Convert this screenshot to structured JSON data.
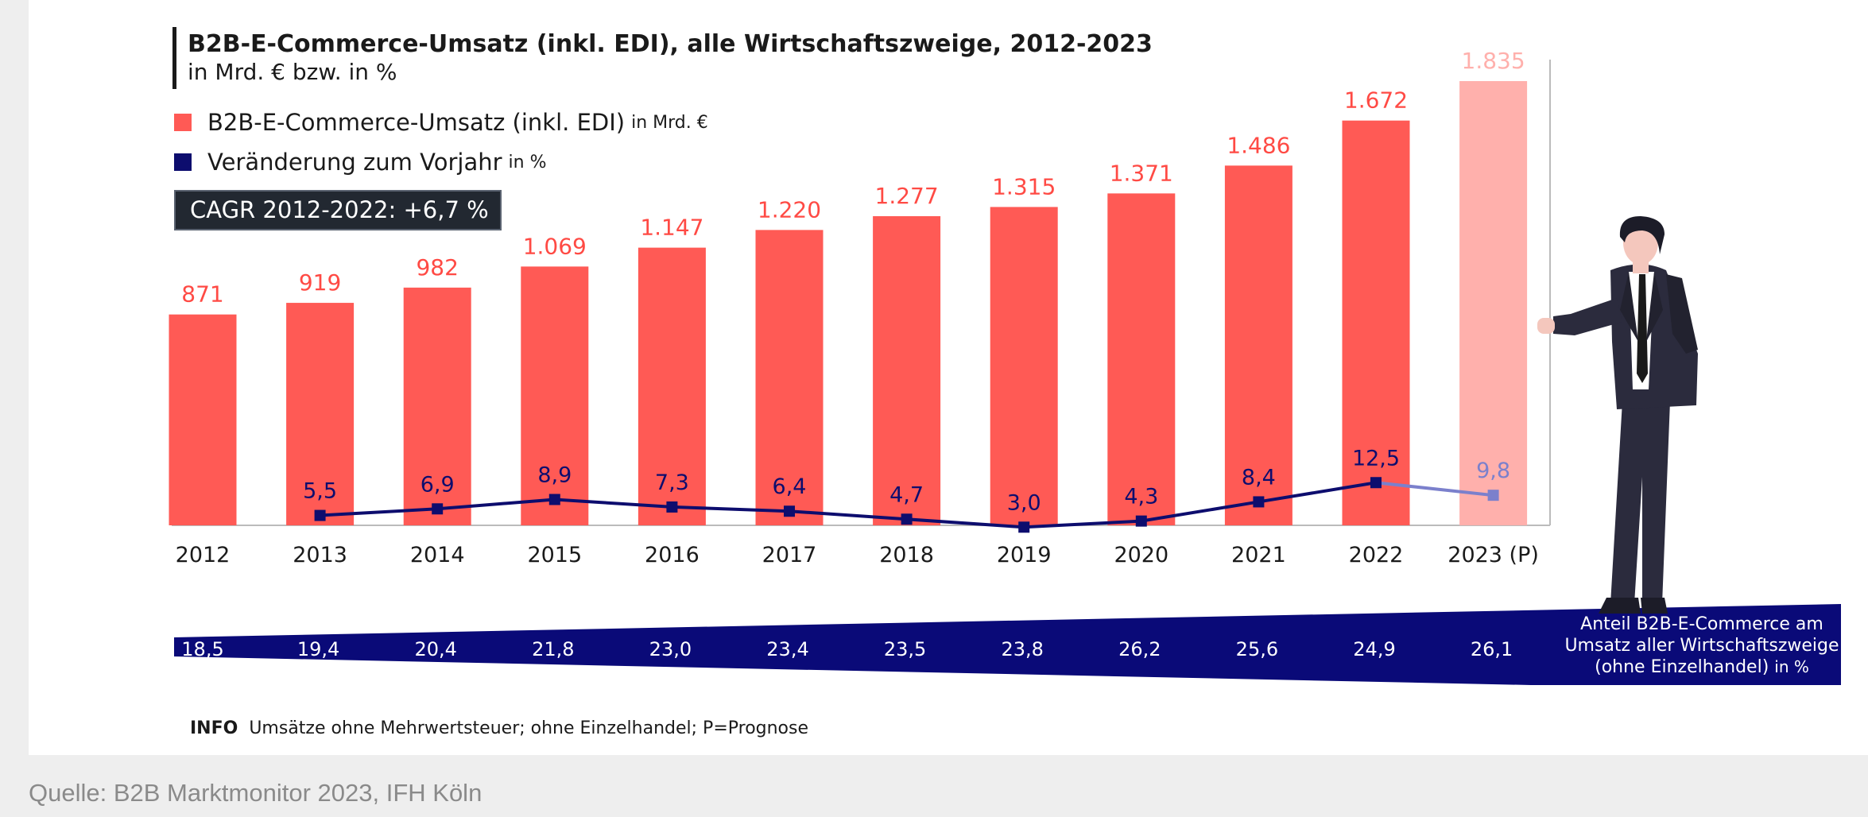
{
  "chart_data": {
    "type": "bar",
    "title": "B2B-E-Commerce-Umsatz (inkl. EDI), alle Wirtschaftszweige, 2012-2023",
    "subtitle": "in Mrd. € bzw. in %",
    "categories": [
      "2012",
      "2013",
      "2014",
      "2015",
      "2016",
      "2017",
      "2018",
      "2019",
      "2020",
      "2021",
      "2022",
      "2023 (P)"
    ],
    "series": [
      {
        "name": "B2B-E-Commerce-Umsatz (inkl. EDI)",
        "unit": "in Mrd. €",
        "type": "bar",
        "values": [
          871,
          919,
          982,
          1069,
          1147,
          1220,
          1277,
          1315,
          1371,
          1486,
          1672,
          1835
        ],
        "labels": [
          "871",
          "919",
          "982",
          "1.069",
          "1.147",
          "1.220",
          "1.277",
          "1.315",
          "1.371",
          "1.486",
          "1.672",
          "1.835"
        ],
        "color": "#ff5a55",
        "forecast_color": "#ffb0ac"
      },
      {
        "name": "Veränderung zum Vorjahr",
        "unit": "in %",
        "type": "line",
        "values": [
          null,
          5.5,
          6.9,
          8.9,
          7.3,
          6.4,
          4.7,
          3.0,
          4.3,
          8.4,
          12.5,
          9.8
        ],
        "labels": [
          "",
          "5,5",
          "6,9",
          "8,9",
          "7,3",
          "6,4",
          "4,7",
          "3,0",
          "4,3",
          "8,4",
          "12,5",
          "9,8"
        ],
        "color": "#0d0d6e",
        "forecast_color": "#7b80cc"
      },
      {
        "name": "Anteil B2B-E-Commerce am Umsatz aller Wirtschaftszweige (ohne Einzelhandel)",
        "unit": "in %",
        "type": "band",
        "values": [
          18.5,
          19.4,
          20.4,
          21.8,
          23.0,
          23.4,
          23.5,
          23.8,
          26.2,
          25.6,
          24.9,
          26.1
        ],
        "labels": [
          "18,5",
          "19,4",
          "20,4",
          "21,8",
          "23,0",
          "23,4",
          "23,5",
          "23,8",
          "26,2",
          "25,6",
          "24,9",
          "26,1"
        ],
        "color": "#0a0a78"
      }
    ],
    "forecast_category": "2023 (P)",
    "grid": false,
    "legend_position": "top-left"
  },
  "legend": {
    "revenue_label": "B2B-E-Commerce-Umsatz (inkl. EDI)",
    "revenue_unit": "in Mrd. €",
    "change_label": "Veränderung zum Vorjahr",
    "change_unit": "in %"
  },
  "cagr_text": "CAGR 2012-2022: +6,7 %",
  "share_label": {
    "line1": "Anteil B2B-E-Commerce am",
    "line2": "Umsatz aller Wirtschaftszweige",
    "line3": "(ohne Einzelhandel)",
    "unit": "in %"
  },
  "info": {
    "tag": "INFO",
    "text": "Umsätze ohne Mehrwertsteuer; ohne Einzelhandel; P=Prognose"
  },
  "source": "Quelle: B2B Marktmonitor 2023, IFH Köln",
  "colors": {
    "bar": "#ff5a55",
    "bar_forecast": "#ffb0ac",
    "line": "#0d0d6e",
    "band": "#0a0a78"
  }
}
